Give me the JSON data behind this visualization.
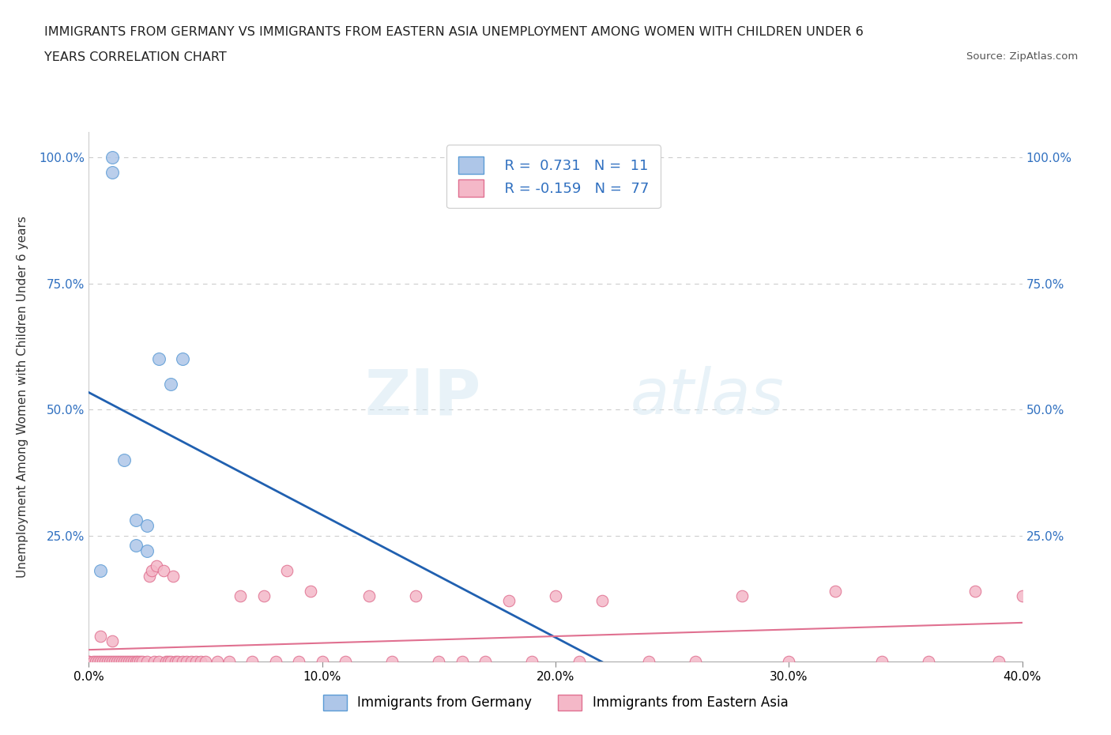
{
  "title_line1": "IMMIGRANTS FROM GERMANY VS IMMIGRANTS FROM EASTERN ASIA UNEMPLOYMENT AMONG WOMEN WITH CHILDREN UNDER 6",
  "title_line2": "YEARS CORRELATION CHART",
  "source_text": "Source: ZipAtlas.com",
  "ylabel": "Unemployment Among Women with Children Under 6 years",
  "xlim": [
    0.0,
    0.4
  ],
  "ylim": [
    0.0,
    1.05
  ],
  "xtick_values": [
    0.0,
    0.1,
    0.2,
    0.3,
    0.4
  ],
  "ytick_values": [
    0.25,
    0.5,
    0.75,
    1.0
  ],
  "germany_color": "#aec6e8",
  "germany_edge_color": "#5b9bd5",
  "eastern_asia_color": "#f4b8c8",
  "eastern_asia_edge_color": "#e07090",
  "trend_germany_color": "#2060b0",
  "trend_eastern_asia_color": "#e07090",
  "R_germany": 0.731,
  "N_germany": 11,
  "R_eastern_asia": -0.159,
  "N_eastern_asia": 77,
  "legend_label_germany": "Immigrants from Germany",
  "legend_label_eastern_asia": "Immigrants from Eastern Asia",
  "watermark_zip": "ZIP",
  "watermark_atlas": "atlas",
  "background_color": "#ffffff",
  "grid_color": "#cccccc",
  "germany_x": [
    0.005,
    0.01,
    0.01,
    0.015,
    0.02,
    0.02,
    0.025,
    0.025,
    0.03,
    0.035,
    0.04
  ],
  "germany_y": [
    0.18,
    0.97,
    1.0,
    0.4,
    0.23,
    0.28,
    0.22,
    0.27,
    0.6,
    0.55,
    0.6
  ],
  "eastern_asia_x": [
    0.0,
    0.0,
    0.002,
    0.003,
    0.004,
    0.005,
    0.005,
    0.006,
    0.007,
    0.008,
    0.009,
    0.01,
    0.01,
    0.011,
    0.012,
    0.013,
    0.014,
    0.015,
    0.016,
    0.017,
    0.018,
    0.019,
    0.02,
    0.021,
    0.022,
    0.023,
    0.025,
    0.026,
    0.027,
    0.028,
    0.029,
    0.03,
    0.032,
    0.033,
    0.034,
    0.035,
    0.036,
    0.037,
    0.038,
    0.04,
    0.042,
    0.044,
    0.046,
    0.048,
    0.05,
    0.055,
    0.06,
    0.065,
    0.07,
    0.075,
    0.08,
    0.085,
    0.09,
    0.095,
    0.1,
    0.11,
    0.12,
    0.13,
    0.14,
    0.15,
    0.16,
    0.17,
    0.18,
    0.19,
    0.2,
    0.21,
    0.22,
    0.24,
    0.26,
    0.28,
    0.3,
    0.32,
    0.34,
    0.36,
    0.38,
    0.39,
    0.4
  ],
  "eastern_asia_y": [
    0.0,
    0.0,
    0.0,
    0.0,
    0.0,
    0.0,
    0.05,
    0.0,
    0.0,
    0.0,
    0.0,
    0.0,
    0.04,
    0.0,
    0.0,
    0.0,
    0.0,
    0.0,
    0.0,
    0.0,
    0.0,
    0.0,
    0.0,
    0.0,
    0.0,
    0.0,
    0.0,
    0.17,
    0.18,
    0.0,
    0.19,
    0.0,
    0.18,
    0.0,
    0.0,
    0.0,
    0.17,
    0.0,
    0.0,
    0.0,
    0.0,
    0.0,
    0.0,
    0.0,
    0.0,
    0.0,
    0.0,
    0.13,
    0.0,
    0.13,
    0.0,
    0.18,
    0.0,
    0.14,
    0.0,
    0.0,
    0.13,
    0.0,
    0.13,
    0.0,
    0.0,
    0.0,
    0.12,
    0.0,
    0.13,
    0.0,
    0.12,
    0.0,
    0.0,
    0.13,
    0.0,
    0.14,
    0.0,
    0.0,
    0.14,
    0.0,
    0.13
  ]
}
